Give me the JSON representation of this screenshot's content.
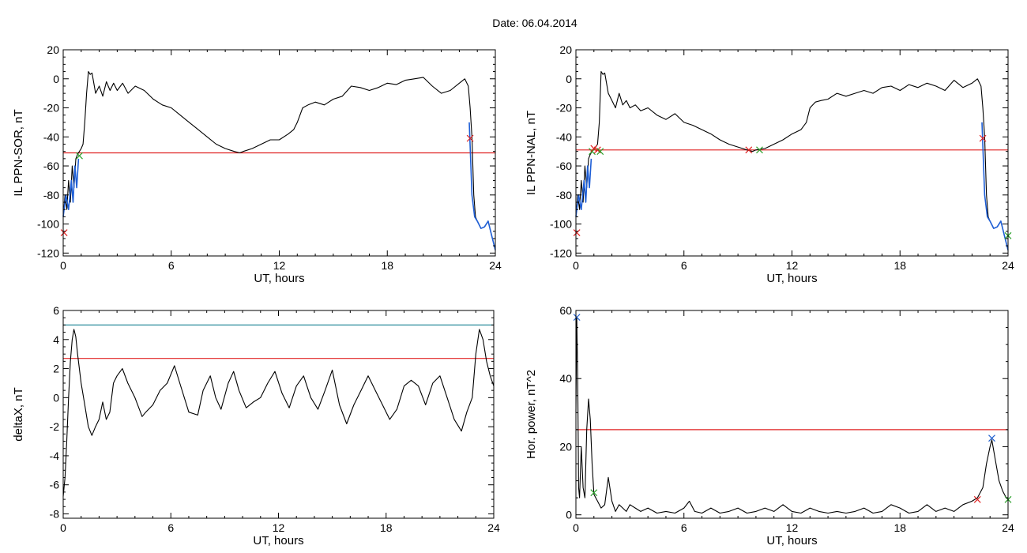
{
  "title": "Date:  06.04.2014",
  "colors": {
    "background": "#ffffff",
    "axis": "#000000",
    "data_line": "#000000",
    "blue_segment": "#1f5fd6",
    "threshold_red": "#e02020",
    "threshold_teal": "#2a8c9c",
    "marker_red": "#e02020",
    "marker_green": "#2aa02a",
    "marker_blue": "#2060d0"
  },
  "chart_data": [
    {
      "id": "il-ppn-sor",
      "type": "line",
      "xlabel": "UT, hours",
      "ylabel": "IL PPN-SOR, nT",
      "xlim": [
        0,
        24
      ],
      "ylim": [
        -122,
        20
      ],
      "xticks": [
        0,
        6,
        12,
        18,
        24
      ],
      "yticks": [
        -120,
        -100,
        -80,
        -60,
        -40,
        -20,
        0,
        20
      ],
      "x": [
        0,
        0.1,
        0.2,
        0.3,
        0.4,
        0.5,
        0.6,
        0.7,
        0.8,
        0.9,
        1.0,
        1.1,
        1.2,
        1.3,
        1.4,
        1.5,
        1.6,
        1.8,
        2.0,
        2.2,
        2.4,
        2.6,
        2.8,
        3.0,
        3.3,
        3.6,
        4.0,
        4.5,
        5.0,
        5.5,
        6.0,
        6.5,
        7.0,
        7.5,
        8.0,
        8.5,
        9.0,
        9.5,
        9.8,
        10.0,
        10.5,
        11.0,
        11.5,
        12.0,
        12.5,
        12.8,
        13.0,
        13.3,
        13.6,
        14.0,
        14.5,
        15.0,
        15.5,
        16.0,
        16.5,
        17.0,
        17.5,
        18.0,
        18.5,
        19.0,
        19.5,
        20.0,
        20.5,
        21.0,
        21.5,
        22.0,
        22.3,
        22.5,
        22.6,
        22.7,
        22.8,
        22.9,
        23.0,
        23.2,
        23.4,
        23.6,
        23.8,
        24.0
      ],
      "y": [
        -95,
        -80,
        -90,
        -70,
        -85,
        -60,
        -75,
        -55,
        -52,
        -50,
        -48,
        -45,
        -30,
        -10,
        5,
        3,
        4,
        -10,
        -5,
        -12,
        -2,
        -8,
        -3,
        -8,
        -3,
        -10,
        -5,
        -8,
        -14,
        -18,
        -20,
        -25,
        -30,
        -35,
        -40,
        -45,
        -48,
        -50,
        -51,
        -50,
        -48,
        -45,
        -42,
        -42,
        -38,
        -35,
        -30,
        -20,
        -18,
        -16,
        -18,
        -14,
        -12,
        -5,
        -6,
        -8,
        -6,
        -3,
        -4,
        -1,
        0,
        1,
        -5,
        -10,
        -8,
        -3,
        0,
        -5,
        -20,
        -40,
        -80,
        -95,
        -98,
        -103,
        -102,
        -98,
        -108,
        -118
      ],
      "blue_segments": [
        {
          "x": [
            0,
            0.15,
            0.3,
            0.45,
            0.55,
            0.65,
            0.75,
            0.85
          ],
          "y": [
            -95,
            -80,
            -90,
            -70,
            -85,
            -60,
            -75,
            -55
          ]
        },
        {
          "x": [
            22.55,
            22.7,
            22.85,
            23.0,
            23.2,
            23.4,
            23.6,
            23.8,
            24.0
          ],
          "y": [
            -30,
            -80,
            -95,
            -98,
            -103,
            -102,
            -98,
            -108,
            -118
          ]
        }
      ],
      "hlines": [
        {
          "y": -51,
          "color": "#e02020"
        }
      ],
      "markers": [
        {
          "x": 0.05,
          "y": -106,
          "color": "#e02020"
        },
        {
          "x": 0.9,
          "y": -53,
          "color": "#2aa02a"
        },
        {
          "x": 22.6,
          "y": -41,
          "color": "#e02020"
        }
      ]
    },
    {
      "id": "il-ppn-nal",
      "type": "line",
      "xlabel": "UT, hours",
      "ylabel": "IL PPN-NAL, nT",
      "xlim": [
        0,
        24
      ],
      "ylim": [
        -122,
        20
      ],
      "xticks": [
        0,
        6,
        12,
        18,
        24
      ],
      "yticks": [
        -120,
        -100,
        -80,
        -60,
        -40,
        -20,
        0,
        20
      ],
      "x": [
        0,
        0.1,
        0.2,
        0.3,
        0.4,
        0.5,
        0.6,
        0.7,
        0.8,
        0.9,
        1.0,
        1.1,
        1.2,
        1.3,
        1.4,
        1.5,
        1.6,
        1.8,
        2.0,
        2.2,
        2.4,
        2.6,
        2.8,
        3.0,
        3.3,
        3.6,
        4.0,
        4.5,
        5.0,
        5.5,
        6.0,
        6.5,
        7.0,
        7.5,
        8.0,
        8.5,
        9.0,
        9.5,
        9.8,
        10.0,
        10.5,
        11.0,
        11.5,
        12.0,
        12.5,
        12.8,
        13.0,
        13.3,
        13.6,
        14.0,
        14.5,
        15.0,
        15.5,
        16.0,
        16.5,
        17.0,
        17.5,
        18.0,
        18.5,
        19.0,
        19.5,
        20.0,
        20.5,
        21.0,
        21.5,
        22.0,
        22.3,
        22.5,
        22.6,
        22.7,
        22.8,
        22.9,
        23.0,
        23.2,
        23.4,
        23.6,
        23.8,
        24.0
      ],
      "y": [
        -95,
        -80,
        -90,
        -70,
        -85,
        -60,
        -75,
        -55,
        -52,
        -50,
        -48,
        -47,
        -45,
        -30,
        5,
        3,
        4,
        -10,
        -15,
        -20,
        -10,
        -18,
        -15,
        -20,
        -18,
        -22,
        -20,
        -25,
        -28,
        -24,
        -30,
        -32,
        -35,
        -38,
        -42,
        -45,
        -47,
        -49,
        -50,
        -49,
        -48,
        -45,
        -42,
        -38,
        -35,
        -30,
        -20,
        -16,
        -15,
        -14,
        -10,
        -12,
        -10,
        -8,
        -10,
        -6,
        -5,
        -8,
        -4,
        -6,
        -3,
        -5,
        -8,
        -1,
        -6,
        -3,
        0,
        -5,
        -20,
        -40,
        -80,
        -95,
        -98,
        -103,
        -102,
        -98,
        -108,
        -118
      ],
      "blue_segments": [
        {
          "x": [
            0,
            0.15,
            0.3,
            0.45,
            0.55,
            0.65,
            0.75,
            0.85
          ],
          "y": [
            -95,
            -80,
            -90,
            -70,
            -85,
            -60,
            -75,
            -55
          ]
        },
        {
          "x": [
            22.55,
            22.7,
            22.85,
            23.0,
            23.2,
            23.4,
            23.6,
            23.8,
            24.0
          ],
          "y": [
            -30,
            -80,
            -95,
            -98,
            -103,
            -102,
            -98,
            -108,
            -118
          ]
        }
      ],
      "hlines": [
        {
          "y": -49,
          "color": "#e02020"
        }
      ],
      "markers": [
        {
          "x": 0.05,
          "y": -106,
          "color": "#e02020"
        },
        {
          "x": 0.9,
          "y": -50,
          "color": "#2aa02a"
        },
        {
          "x": 1.0,
          "y": -48,
          "color": "#e02020"
        },
        {
          "x": 1.2,
          "y": -49,
          "color": "#e02020"
        },
        {
          "x": 1.35,
          "y": -50,
          "color": "#2aa02a"
        },
        {
          "x": 9.6,
          "y": -49,
          "color": "#e02020"
        },
        {
          "x": 10.2,
          "y": -49,
          "color": "#2aa02a"
        },
        {
          "x": 22.6,
          "y": -41,
          "color": "#e02020"
        },
        {
          "x": 24.0,
          "y": -108,
          "color": "#2aa02a"
        }
      ]
    },
    {
      "id": "deltax",
      "type": "line",
      "xlabel": "UT, hours",
      "ylabel": "deltaX, nT",
      "xlim": [
        0,
        24
      ],
      "ylim": [
        -8.3,
        6
      ],
      "xticks": [
        0,
        6,
        12,
        18,
        24
      ],
      "yticks": [
        -8,
        -6,
        -4,
        -2,
        0,
        2,
        4,
        6
      ],
      "x": [
        0,
        0.1,
        0.2,
        0.3,
        0.4,
        0.5,
        0.6,
        0.7,
        0.8,
        1.0,
        1.2,
        1.4,
        1.6,
        1.8,
        2.0,
        2.2,
        2.4,
        2.6,
        2.8,
        3.0,
        3.3,
        3.6,
        4.0,
        4.4,
        4.6,
        5.0,
        5.4,
        5.8,
        6.2,
        6.5,
        7.0,
        7.5,
        7.8,
        8.2,
        8.5,
        8.8,
        9.2,
        9.5,
        9.8,
        10.2,
        10.6,
        11.0,
        11.4,
        11.8,
        12.2,
        12.6,
        13.0,
        13.4,
        13.8,
        14.2,
        14.6,
        15.0,
        15.4,
        15.8,
        16.2,
        16.6,
        17.0,
        17.4,
        17.8,
        18.2,
        18.6,
        19.0,
        19.4,
        19.8,
        20.2,
        20.6,
        21.0,
        21.4,
        21.8,
        22.2,
        22.5,
        22.8,
        23.0,
        23.2,
        23.4,
        23.6,
        23.8,
        24.0
      ],
      "y": [
        -6.8,
        -5.5,
        -3.0,
        0.0,
        2.5,
        4.0,
        4.7,
        4.2,
        3.0,
        1.0,
        -0.5,
        -2.0,
        -2.6,
        -2.0,
        -1.5,
        -0.3,
        -1.5,
        -1.0,
        1.0,
        1.5,
        2.0,
        1.0,
        0.0,
        -1.3,
        -1.0,
        -0.5,
        0.5,
        1.0,
        2.2,
        1.0,
        -1.0,
        -1.2,
        0.5,
        1.5,
        0.0,
        -0.8,
        1.0,
        1.8,
        0.5,
        -0.7,
        -0.3,
        0.0,
        1.0,
        1.8,
        0.3,
        -0.7,
        0.8,
        1.5,
        0.0,
        -0.8,
        0.5,
        1.9,
        -0.5,
        -1.8,
        -0.5,
        0.5,
        1.5,
        0.5,
        -0.5,
        -1.5,
        -0.8,
        0.8,
        1.2,
        0.8,
        -0.5,
        1.0,
        1.5,
        0.0,
        -1.5,
        -2.3,
        -1.0,
        0.0,
        3.0,
        4.7,
        4.0,
        2.5,
        1.5,
        0.8
      ],
      "blue_segments": [],
      "hlines": [
        {
          "y": 5.0,
          "color": "#2a8c9c"
        },
        {
          "y": 2.7,
          "color": "#e02020"
        }
      ],
      "markers": []
    },
    {
      "id": "hor-power",
      "type": "line",
      "xlabel": "UT, hours",
      "ylabel": "Hor. power, nT^2",
      "xlim": [
        0,
        24
      ],
      "ylim": [
        -1,
        60
      ],
      "xticks": [
        0,
        6,
        12,
        18,
        24
      ],
      "yticks": [
        0,
        20,
        40,
        60
      ],
      "x": [
        0,
        0.05,
        0.1,
        0.15,
        0.2,
        0.3,
        0.4,
        0.5,
        0.6,
        0.7,
        0.8,
        0.9,
        1.0,
        1.1,
        1.2,
        1.4,
        1.6,
        1.8,
        2.0,
        2.2,
        2.4,
        2.6,
        2.8,
        3.0,
        3.3,
        3.6,
        4.0,
        4.5,
        5.0,
        5.5,
        6.0,
        6.3,
        6.6,
        7.0,
        7.5,
        8.0,
        8.5,
        9.0,
        9.5,
        10.0,
        10.5,
        11.0,
        11.5,
        12.0,
        12.5,
        13.0,
        13.5,
        14.0,
        14.5,
        15.0,
        15.5,
        16.0,
        16.5,
        17.0,
        17.5,
        18.0,
        18.5,
        19.0,
        19.5,
        20.0,
        20.5,
        21.0,
        21.5,
        22.0,
        22.3,
        22.6,
        22.8,
        23.0,
        23.1,
        23.3,
        23.5,
        23.7,
        23.9,
        24.0
      ],
      "y": [
        30,
        58,
        40,
        8,
        5,
        20,
        8,
        5,
        25,
        34,
        28,
        15,
        6,
        5,
        4,
        2,
        3,
        11,
        4,
        1,
        3,
        2,
        1,
        3,
        2,
        1,
        2,
        0.5,
        1,
        0.5,
        2,
        4,
        1,
        0.5,
        2,
        0.5,
        1,
        2,
        0.5,
        1,
        2,
        1,
        3,
        1,
        0.5,
        2,
        1,
        0.5,
        1,
        0.5,
        1,
        2,
        0.5,
        1,
        3,
        2,
        0.5,
        1,
        3,
        1,
        2,
        1,
        3,
        4,
        5,
        8,
        15,
        20,
        22,
        16,
        10,
        7,
        5,
        5
      ],
      "blue_segments": [],
      "hlines": [
        {
          "y": 25,
          "color": "#e02020"
        }
      ],
      "markers": [
        {
          "x": 0.05,
          "y": 58,
          "color": "#2060d0"
        },
        {
          "x": 1.0,
          "y": 6.5,
          "color": "#2aa02a"
        },
        {
          "x": 22.3,
          "y": 4.5,
          "color": "#e02020"
        },
        {
          "x": 23.1,
          "y": 22.5,
          "color": "#2060d0"
        },
        {
          "x": 24.0,
          "y": 4.5,
          "color": "#2aa02a"
        }
      ]
    }
  ]
}
